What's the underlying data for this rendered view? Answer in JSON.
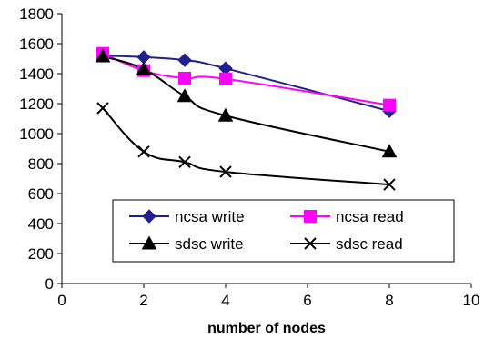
{
  "chart_data": {
    "type": "line",
    "title": "",
    "xlabel": "number of nodes",
    "ylabel": "",
    "xlim": [
      0,
      10
    ],
    "ylim": [
      0,
      1800
    ],
    "x_ticks": [
      0,
      2,
      4,
      6,
      8,
      10
    ],
    "y_ticks": [
      0,
      200,
      400,
      600,
      800,
      1000,
      1200,
      1400,
      1600,
      1800
    ],
    "grid": false,
    "smooth": true,
    "legend_position": "lower-right",
    "series": [
      {
        "name": "ncsa write",
        "color": "#1f1f8f",
        "marker": "diamond",
        "x": [
          1,
          2,
          3,
          4,
          8
        ],
        "y": [
          1520,
          1510,
          1490,
          1435,
          1150
        ]
      },
      {
        "name": "ncsa read",
        "color": "#ff00ff",
        "marker": "square",
        "x": [
          1,
          2,
          3,
          4,
          8
        ],
        "y": [
          1535,
          1420,
          1370,
          1365,
          1190
        ]
      },
      {
        "name": "sdsc write",
        "color": "#000000",
        "marker": "triangle",
        "x": [
          1,
          2,
          3,
          4,
          8
        ],
        "y": [
          1515,
          1430,
          1250,
          1120,
          880
        ]
      },
      {
        "name": "sdsc read",
        "color": "#000000",
        "marker": "x",
        "x": [
          1,
          2,
          3,
          4,
          8
        ],
        "y": [
          1170,
          880,
          810,
          745,
          660
        ]
      }
    ]
  }
}
